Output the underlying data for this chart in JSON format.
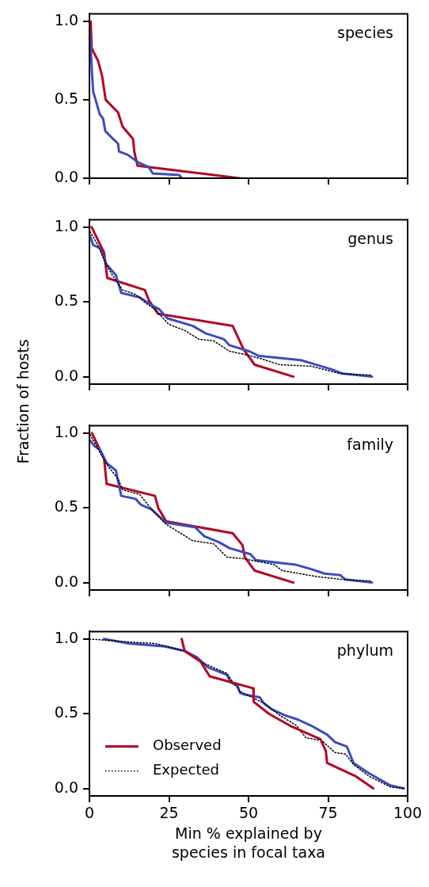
{
  "chart_data": [
    {
      "type": "line",
      "title": "species",
      "xlim": [
        0,
        100
      ],
      "xticks": [
        0,
        25,
        50,
        75,
        100
      ],
      "ylim": [
        0,
        1.05
      ],
      "yticks": [
        {
          "value": 0,
          "label": "0.0"
        },
        {
          "value": 0.5,
          "label": "0.5"
        },
        {
          "value": 1,
          "label": "1.0"
        }
      ],
      "tick_labels": "y",
      "grid": false,
      "marker": "none",
      "series": [
        {
          "color": "#3b4cc0",
          "line_style": "solid",
          "x": [
            0,
            0.4,
            0.8,
            1.2,
            2.1,
            3.2,
            4.3,
            5,
            7.5,
            9,
            9.3,
            12,
            15.4,
            18.7,
            19.9,
            28.2,
            29
          ],
          "values": [
            0.95,
            0.84,
            0.67,
            0.55,
            0.49,
            0.41,
            0.38,
            0.3,
            0.25,
            0.22,
            0.17,
            0.15,
            0.1,
            0.07,
            0.03,
            0.02,
            0
          ]
        },
        {
          "color": "#b40426",
          "line_style": "solid",
          "x": [
            0.4,
            0.7,
            2.7,
            4,
            5.1,
            9,
            10.4,
            13.7,
            14.1,
            15.1,
            47.1
          ],
          "values": [
            1,
            0.83,
            0.75,
            0.65,
            0.5,
            0.42,
            0.33,
            0.25,
            0.17,
            0.08,
            0
          ]
        }
      ]
    },
    {
      "type": "line",
      "title": "genus",
      "ylabel": "Fraction of hosts",
      "xlim": [
        0,
        100
      ],
      "xticks": [
        0,
        25,
        50,
        75,
        100
      ],
      "ylim": [
        -0.05,
        1.05
      ],
      "yticks": [
        {
          "value": 0,
          "label": "0.0"
        },
        {
          "value": 0.5,
          "label": "0.5"
        },
        {
          "value": 1,
          "label": "1.0"
        }
      ],
      "tick_labels": "y",
      "grid": false,
      "marker": "none",
      "series": [
        {
          "color": "#000000",
          "line_style": "dotted",
          "x": [
            0.2,
            2.9,
            5,
            7.5,
            10.4,
            14.5,
            17.8,
            20.7,
            24.9,
            29.9,
            34.4,
            39,
            44,
            48.5,
            54,
            59.8,
            69.7,
            78.8,
            88.8
          ],
          "values": [
            0.97,
            0.87,
            0.76,
            0.67,
            0.58,
            0.55,
            0.49,
            0.45,
            0.35,
            0.31,
            0.25,
            0.24,
            0.17,
            0.15,
            0.12,
            0.08,
            0.07,
            0.02,
            0.01
          ]
        },
        {
          "color": "#3b4cc0",
          "line_style": "solid",
          "x": [
            0.2,
            1.2,
            3.3,
            5.4,
            8.3,
            10,
            15.8,
            19.5,
            22,
            24.5,
            32.4,
            36.5,
            42.3,
            44,
            50.2,
            53.1,
            66.4,
            69.7,
            75.9,
            79.7,
            88.8
          ],
          "values": [
            0.94,
            0.88,
            0.86,
            0.75,
            0.68,
            0.56,
            0.53,
            0.48,
            0.45,
            0.39,
            0.34,
            0.29,
            0.25,
            0.21,
            0.17,
            0.14,
            0.11,
            0.09,
            0.05,
            0.02,
            0
          ]
        },
        {
          "color": "#b40426",
          "line_style": "solid",
          "x": [
            0.7,
            4.6,
            5.6,
            17.4,
            18.7,
            21.6,
            45,
            48.5,
            51.9,
            64.1
          ],
          "values": [
            1,
            0.83,
            0.66,
            0.58,
            0.51,
            0.42,
            0.34,
            0.18,
            0.08,
            0
          ]
        }
      ]
    },
    {
      "type": "line",
      "title": "family",
      "xlim": [
        0,
        100
      ],
      "xticks": [
        0,
        25,
        50,
        75,
        100
      ],
      "ylim": [
        -0.05,
        1.05
      ],
      "yticks": [
        {
          "value": 0,
          "label": "0.0"
        },
        {
          "value": 0.5,
          "label": "0.5"
        },
        {
          "value": 1,
          "label": "1.0"
        }
      ],
      "tick_labels": "y",
      "grid": false,
      "marker": "none",
      "series": [
        {
          "color": "#000000",
          "line_style": "dotted",
          "x": [
            0.2,
            3.3,
            5.8,
            9.1,
            10.4,
            15.8,
            19.9,
            24.1,
            32.4,
            39,
            43.2,
            48.1,
            58.1,
            60.6,
            71.4,
            79.7,
            88.8
          ],
          "values": [
            0.99,
            0.87,
            0.78,
            0.69,
            0.62,
            0.59,
            0.48,
            0.39,
            0.28,
            0.26,
            0.17,
            0.16,
            0.12,
            0.08,
            0.04,
            0.02,
            0.01
          ]
        },
        {
          "color": "#3b4cc0",
          "line_style": "solid",
          "x": [
            0.2,
            1.7,
            3.3,
            5.4,
            8.3,
            10,
            14.5,
            16.2,
            19.5,
            24.1,
            33.2,
            36.1,
            40.7,
            44,
            50.6,
            52.3,
            64.7,
            69.7,
            73.9,
            78.8,
            80.5,
            88.8
          ],
          "values": [
            0.95,
            0.91,
            0.89,
            0.8,
            0.75,
            0.58,
            0.56,
            0.52,
            0.49,
            0.4,
            0.37,
            0.31,
            0.27,
            0.23,
            0.19,
            0.15,
            0.12,
            0.09,
            0.06,
            0.05,
            0.02,
            0
          ]
        },
        {
          "color": "#b40426",
          "line_style": "solid",
          "x": [
            0.8,
            4.6,
            5.4,
            20.6,
            21.6,
            24.1,
            45,
            48.1,
            48.8,
            51.9,
            64.1
          ],
          "values": [
            1,
            0.83,
            0.66,
            0.58,
            0.5,
            0.41,
            0.33,
            0.25,
            0.17,
            0.08,
            0
          ]
        }
      ]
    },
    {
      "type": "line",
      "title": "phylum",
      "xlabel": "Min % explained by species in focal taxa",
      "xlim": [
        0,
        100
      ],
      "xticks": [
        0,
        25,
        50,
        75,
        100
      ],
      "ylim": [
        -0.05,
        1.05
      ],
      "yticks": [
        {
          "value": 0,
          "label": "0.0"
        },
        {
          "value": 0.5,
          "label": "0.5"
        },
        {
          "value": 1,
          "label": "1.0"
        }
      ],
      "grid": false,
      "marker": "none",
      "legend": "bottom left",
      "series": [
        {
          "name": "Observed",
          "color": "#b40426",
          "line_style": "solid",
          "x": [
            29,
            29.9,
            34.9,
            37.8,
            51.5,
            51.6,
            56.4,
            63,
            72.6,
            74.3,
            74.7,
            83.8,
            89.2
          ],
          "values": [
            1,
            0.92,
            0.85,
            0.75,
            0.67,
            0.58,
            0.5,
            0.42,
            0.33,
            0.25,
            0.17,
            0.08,
            0
          ]
        },
        {
          "name": "Expected",
          "color": "#000000",
          "line_style": "dotted",
          "x": [
            0,
            12.4,
            20.7,
            29.9,
            35.7,
            43.2,
            44.8,
            47.3,
            54.8,
            59.8,
            65.1,
            68,
            73,
            77.2,
            80.5,
            83,
            88,
            94.6,
            98.8
          ],
          "values": [
            1,
            0.98,
            0.97,
            0.92,
            0.84,
            0.77,
            0.72,
            0.65,
            0.57,
            0.49,
            0.42,
            0.34,
            0.32,
            0.24,
            0.23,
            0.16,
            0.08,
            0.01,
            0
          ]
        },
        {
          "color": "#3b4cc0",
          "line_style": "solid",
          "x": [
            4.6,
            12.4,
            23.7,
            29.9,
            33.6,
            37.3,
            43.2,
            44.4,
            46.5,
            47.3,
            48.5,
            53.5,
            54.8,
            57.3,
            61.4,
            65.6,
            69.7,
            74.7,
            77.2,
            80.9,
            83,
            88,
            94.6,
            98.8
          ],
          "values": [
            1,
            0.97,
            0.95,
            0.92,
            0.88,
            0.81,
            0.76,
            0.71,
            0.69,
            0.64,
            0.63,
            0.61,
            0.57,
            0.53,
            0.49,
            0.46,
            0.42,
            0.36,
            0.31,
            0.28,
            0.17,
            0.1,
            0.02,
            0
          ]
        }
      ]
    }
  ]
}
